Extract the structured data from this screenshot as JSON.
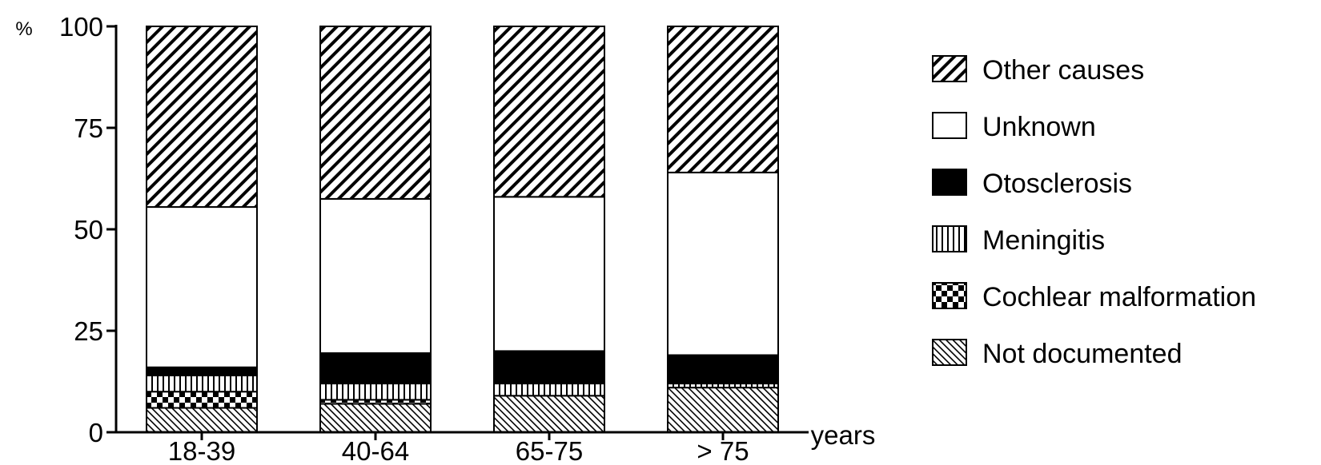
{
  "chart_data": {
    "type": "bar",
    "stacked": true,
    "ylabel": "%",
    "xlabel": "years",
    "ylim": [
      0,
      100
    ],
    "yticks": [
      "0",
      "25",
      "50",
      "75",
      "100"
    ],
    "categories": [
      "18-39",
      "40-64",
      "65-75",
      "> 75"
    ],
    "series": [
      {
        "name": "Not documented",
        "pattern": "fine-diagonal",
        "values": [
          6,
          7,
          9,
          11
        ]
      },
      {
        "name": "Cochlear malformation",
        "pattern": "checker",
        "values": [
          4,
          1,
          0,
          0
        ]
      },
      {
        "name": "Meningitis",
        "pattern": "vertical-lines",
        "values": [
          4,
          4,
          3,
          1
        ]
      },
      {
        "name": "Otosclerosis",
        "pattern": "solid-black",
        "values": [
          2,
          7.5,
          8,
          7
        ]
      },
      {
        "name": "Unknown",
        "pattern": "white",
        "values": [
          39.5,
          38,
          38,
          45
        ]
      },
      {
        "name": "Other causes",
        "pattern": "coarse-diagonal",
        "values": [
          44.5,
          42.5,
          42,
          36
        ]
      }
    ],
    "legend_position": "right",
    "legend_order": [
      "Other causes",
      "Unknown",
      "Otosclerosis",
      "Meningitis",
      "Cochlear malformation",
      "Not documented"
    ],
    "grid": false,
    "colors": {
      "ink": "#000000",
      "fill": "#ffffff"
    }
  }
}
